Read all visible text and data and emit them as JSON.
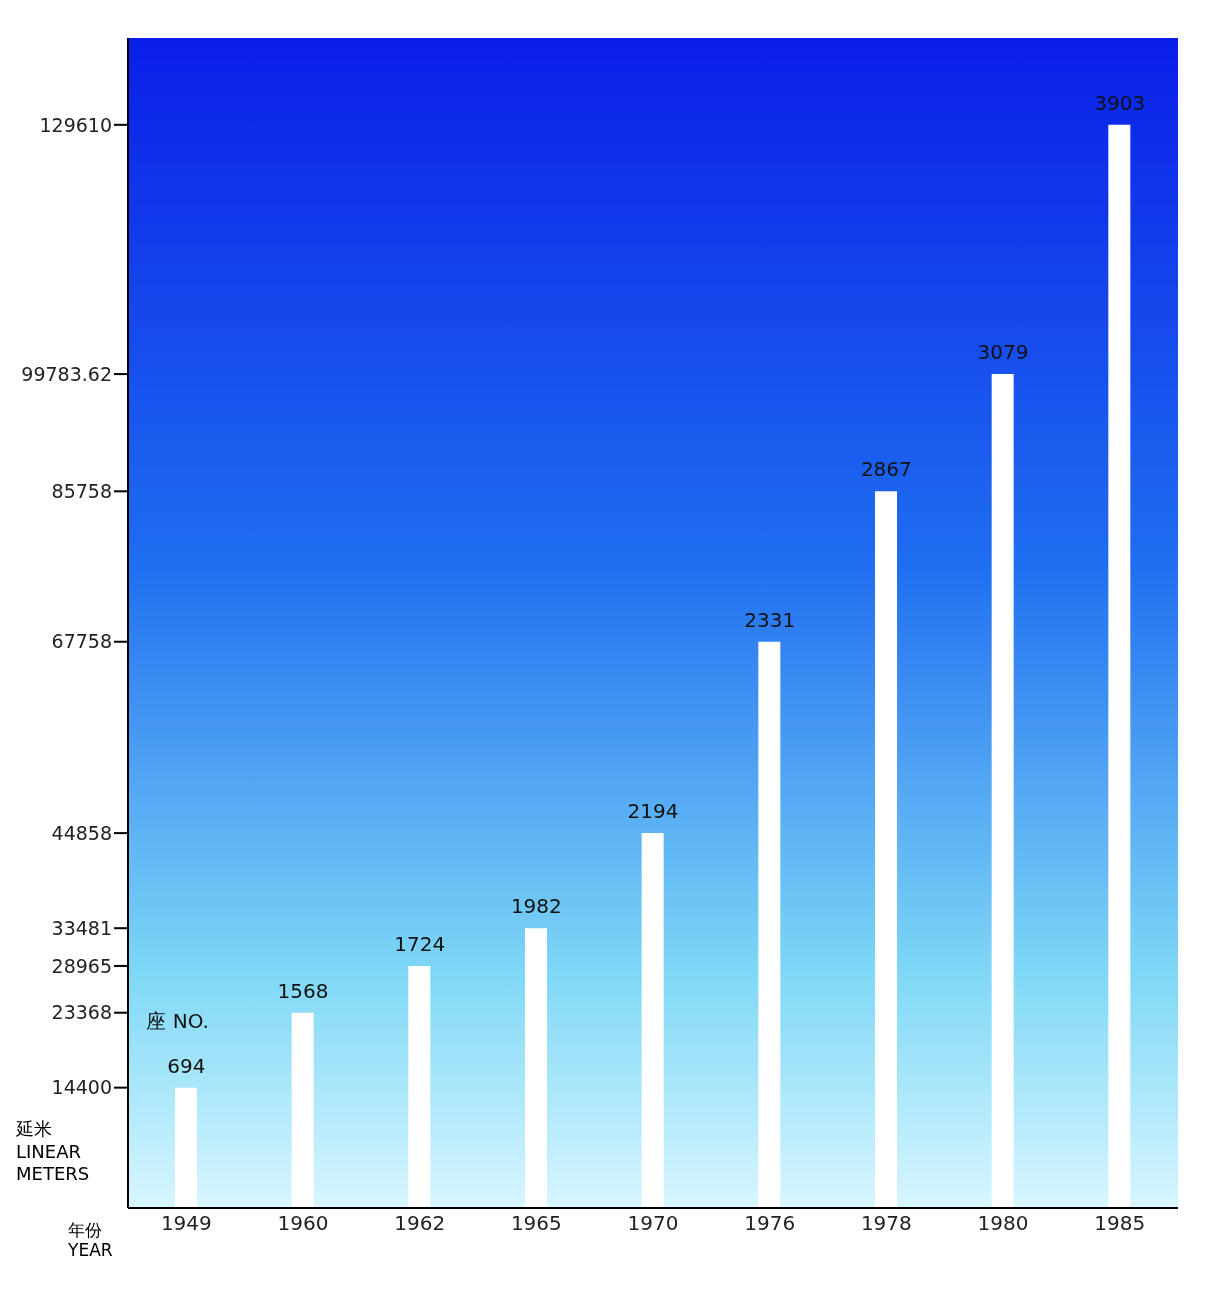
{
  "chart_data": {
    "type": "bar",
    "categories": [
      "1949",
      "1960",
      "1962",
      "1965",
      "1970",
      "1976",
      "1978",
      "1980",
      "1985"
    ],
    "values": [
      14400,
      23368,
      28965,
      33481,
      44858,
      67758,
      85758,
      99783.62,
      129610
    ],
    "color": "#ffffff",
    "ylim": [
      0,
      140000
    ],
    "yticks": [
      14400,
      23368,
      28965,
      33481,
      44858,
      67758,
      85758,
      99783.62,
      129610
    ],
    "ylabel": "延米\nLINEAR METERS",
    "xlabel": "年份\nYEAR",
    "annotations": [
      "座 NO.",
      {
        "text": "694",
        "x": "1949",
        "y": 14400
      },
      {
        "text": "1568",
        "x": "1960",
        "y": 23368
      },
      {
        "text": "1724",
        "x": "1962",
        "y": 28965
      },
      {
        "text": "1982",
        "x": "1965",
        "y": 33481
      },
      {
        "text": "2194",
        "x": "1970",
        "y": 44858
      },
      {
        "text": "2331",
        "x": "1976",
        "y": 67758
      },
      {
        "text": "2867",
        "x": "1978",
        "y": 85758
      },
      {
        "text": "3079",
        "x": "1980",
        "y": 99783.62
      },
      {
        "text": "3903",
        "x": "1985",
        "y": 129610
      }
    ],
    "grid": false,
    "legend": false
  }
}
